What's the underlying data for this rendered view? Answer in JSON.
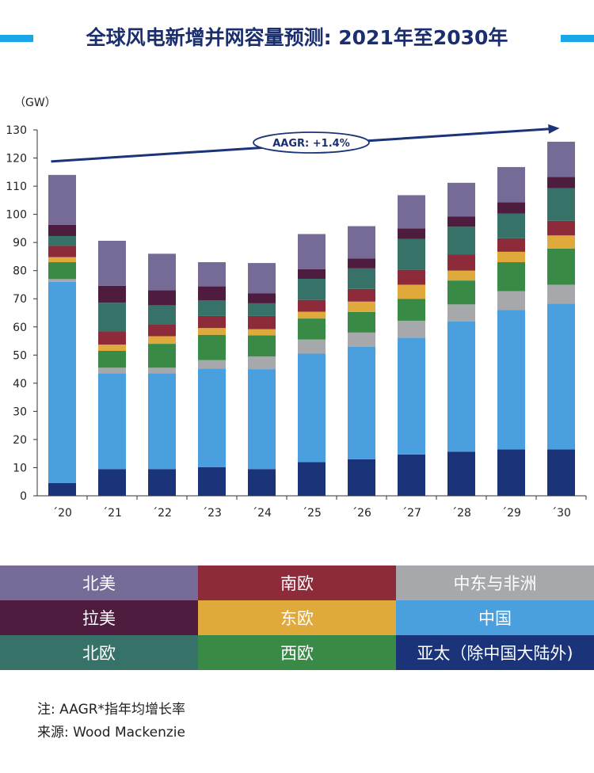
{
  "title": "全球风电新增并网容量预测: 2021年至2030年",
  "notes": {
    "note": "注: AAGR*指年均增长率",
    "source": "来源: Wood Mackenzie"
  },
  "chart_data": {
    "type": "bar",
    "stacked": true,
    "ylabel": "（GW）",
    "ylim": [
      0,
      130
    ],
    "yticks": [
      0,
      10,
      20,
      30,
      40,
      50,
      60,
      70,
      80,
      90,
      100,
      110,
      120,
      130
    ],
    "categories": [
      "´20",
      "´21",
      "´22",
      "´23",
      "´24",
      "´25",
      "´26",
      "´27",
      "´28",
      "´29",
      "´30"
    ],
    "annotation": "AAGR: +1.4%",
    "series": [
      {
        "name": "亚太（除中国大陆外)",
        "color": "#1b3479",
        "values": [
          4.5,
          9.5,
          9.5,
          10.2,
          9.5,
          12,
          13,
          14.7,
          15.7,
          16.5,
          16.5
        ]
      },
      {
        "name": "中国",
        "color": "#4aa0de",
        "values": [
          71.5,
          34,
          34,
          35,
          35.5,
          38.5,
          40,
          41.5,
          46.3,
          49.5,
          51.8
        ]
      },
      {
        "name": "中东与非洲",
        "color": "#a6a8ab",
        "values": [
          1,
          2,
          2,
          3,
          4.5,
          5,
          5,
          6,
          6,
          6.7,
          6.7
        ]
      },
      {
        "name": "西欧",
        "color": "#3a8a47",
        "values": [
          6,
          6,
          8.5,
          9,
          7.5,
          7.5,
          7.3,
          7.8,
          8.5,
          10.3,
          12.8
        ]
      },
      {
        "name": "东欧",
        "color": "#e0a93b",
        "values": [
          1.8,
          2.2,
          2.7,
          2.4,
          2.2,
          2.4,
          3.7,
          5,
          3.5,
          3.7,
          4.7
        ]
      },
      {
        "name": "南欧",
        "color": "#8e2b3a",
        "values": [
          4,
          4.7,
          4.2,
          4.3,
          4.7,
          4.2,
          4.5,
          5.3,
          5.8,
          4.8,
          5.2
        ]
      },
      {
        "name": "北欧",
        "color": "#367268",
        "values": [
          3.5,
          10.2,
          6.8,
          5.5,
          4.5,
          7.5,
          7.3,
          11,
          9.8,
          8.8,
          11.6
        ]
      },
      {
        "name": "拉美",
        "color": "#4d1c3e",
        "values": [
          4,
          6,
          5.3,
          5,
          3.5,
          3.4,
          3.5,
          3.7,
          3.6,
          4,
          4
        ]
      },
      {
        "name": "北美",
        "color": "#766a97",
        "values": [
          17.7,
          16,
          13,
          8.6,
          10.8,
          12.5,
          11.5,
          11.8,
          12,
          12.5,
          12.5
        ]
      }
    ]
  },
  "legend": [
    {
      "label": "北美",
      "color": "#766a97"
    },
    {
      "label": "南欧",
      "color": "#8e2b3a"
    },
    {
      "label": "中东与非洲",
      "color": "#a6a8ab"
    },
    {
      "label": "拉美",
      "color": "#4d1c3e"
    },
    {
      "label": "东欧",
      "color": "#e0a93b"
    },
    {
      "label": "中国",
      "color": "#4aa0de"
    },
    {
      "label": "北欧",
      "color": "#367268"
    },
    {
      "label": "西欧",
      "color": "#3a8a47"
    },
    {
      "label": "亚太（除中国大陆外)",
      "color": "#1b3479"
    }
  ]
}
